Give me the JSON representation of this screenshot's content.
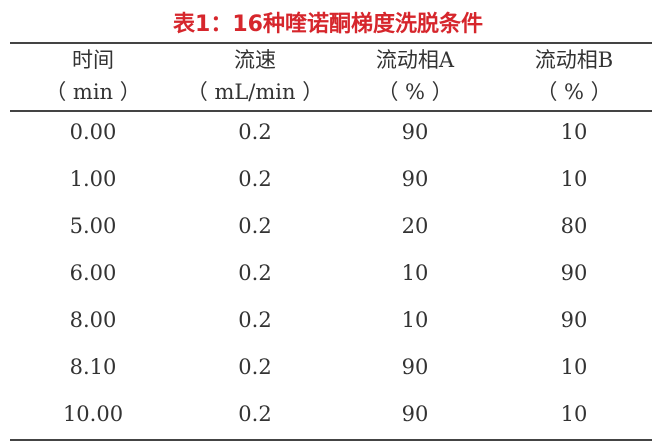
{
  "title": "表1：16种喹诺酮梯度洗脱条件",
  "headers": [
    {
      "name": "时间",
      "unit": "（ min ）"
    },
    {
      "name": "流速",
      "unit": "（ mL/min ）"
    },
    {
      "name": "流动相A",
      "unit": "（ % ）"
    },
    {
      "name": "流动相B",
      "unit": "（ % ）"
    }
  ],
  "rows": [
    [
      "0.00",
      "0.2",
      "90",
      "10"
    ],
    [
      "1.00",
      "0.2",
      "90",
      "10"
    ],
    [
      "5.00",
      "0.2",
      "20",
      "80"
    ],
    [
      "6.00",
      "0.2",
      "10",
      "90"
    ],
    [
      "8.00",
      "0.2",
      "10",
      "90"
    ],
    [
      "8.10",
      "0.2",
      "90",
      "10"
    ],
    [
      "10.00",
      "0.2",
      "90",
      "10"
    ]
  ],
  "colors": {
    "title": "#d6262c",
    "text": "#333333",
    "rules": "#444444"
  }
}
